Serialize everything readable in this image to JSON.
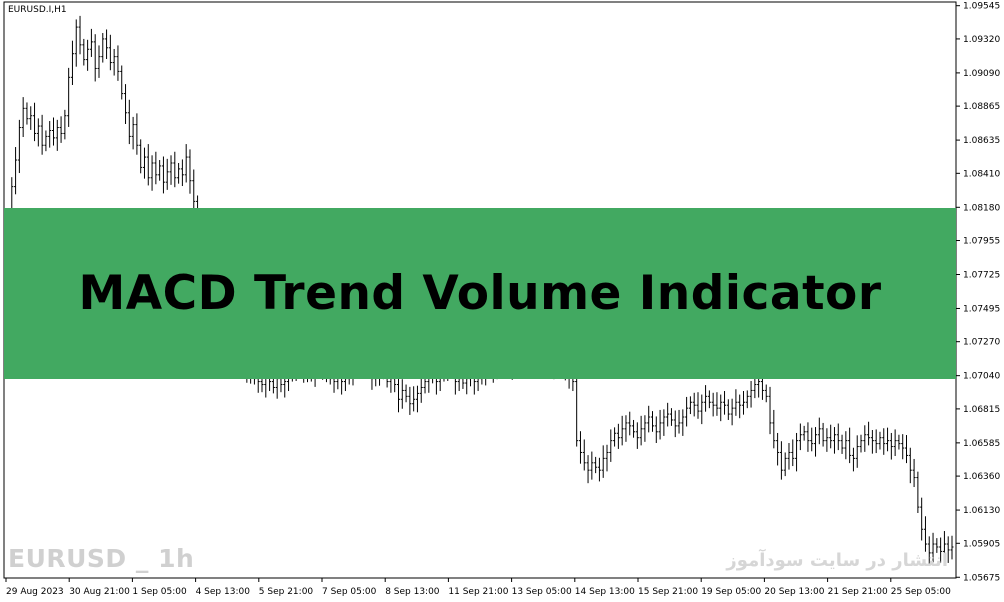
{
  "chart": {
    "symbol_label": "EURUSD.I,H1",
    "banner_title": "MACD Trend Volume Indicator",
    "watermark_left": "EURUSD _ 1h",
    "watermark_right": "انتشار در سایت سودآموز",
    "colors": {
      "banner": "#42a961",
      "candle": "#000000",
      "background": "#ffffff"
    }
  },
  "chart_data": {
    "type": "ohlc",
    "yaxis": {
      "ylim": [
        1.0567,
        1.0957
      ],
      "ticks": [
        "1.09545",
        "1.09320",
        "1.09090",
        "1.08865",
        "1.08635",
        "1.08410",
        "1.08180",
        "1.07955",
        "1.07725",
        "1.07495",
        "1.07270",
        "1.07040",
        "1.06815",
        "1.06585",
        "1.06360",
        "1.06130",
        "1.05905",
        "1.05675"
      ]
    },
    "xaxis": {
      "ticks": [
        "29 Aug 2023",
        "30 Aug 21:00",
        "1 Sep 05:00",
        "4 Sep 13:00",
        "5 Sep 21:00",
        "7 Sep 05:00",
        "8 Sep 13:00",
        "11 Sep 21:00",
        "13 Sep 05:00",
        "14 Sep 13:00",
        "15 Sep 21:00",
        "19 Sep 05:00",
        "20 Sep 13:00",
        "21 Sep 21:00",
        "25 Sep 05:00"
      ]
    },
    "series_close": [
      1.0812,
      1.0832,
      1.085,
      1.0872,
      1.0885,
      1.0878,
      1.088,
      1.0868,
      1.0873,
      1.086,
      1.0866,
      1.087,
      1.0865,
      1.0872,
      1.0868,
      1.088,
      1.0906,
      1.0922,
      1.094,
      1.0928,
      1.0918,
      1.0925,
      1.093,
      1.0912,
      1.092,
      1.0932,
      1.0926,
      1.0916,
      1.092,
      1.091,
      1.0895,
      1.0882,
      1.0866,
      1.0874,
      1.086,
      1.0845,
      1.0852,
      1.0838,
      1.0848,
      1.084,
      1.0846,
      1.0835,
      1.0842,
      1.0848,
      1.0838,
      1.0844,
      1.084,
      1.0852,
      1.0836,
      1.0822,
      1.079,
      1.078,
      1.077,
      1.076,
      1.075,
      1.0745,
      1.074,
      1.0735,
      1.073,
      1.0725,
      1.072,
      1.0715,
      1.0712,
      1.0708,
      1.0705,
      1.0702,
      1.07,
      1.0698,
      1.0704,
      1.07,
      1.0696,
      1.0702,
      1.0698,
      1.07,
      1.0704,
      1.0708,
      1.0712,
      1.0708,
      1.071,
      1.0706,
      1.0704,
      1.0708,
      1.0712,
      1.071,
      1.0706,
      1.0702,
      1.07,
      1.0704,
      1.07,
      1.0702,
      1.0705,
      1.0708,
      1.0712,
      1.0715,
      1.071,
      1.0706,
      1.0702,
      1.0706,
      1.0708,
      1.0712,
      1.07,
      1.0702,
      1.0698,
      1.0688,
      1.0694,
      1.069,
      1.0685,
      1.0688,
      1.0692,
      1.0696,
      1.07,
      1.0704,
      1.0706,
      1.07,
      1.0704,
      1.0708,
      1.0712,
      1.0708,
      1.07,
      1.0702,
      1.0699,
      1.0702,
      1.0705,
      1.07,
      1.0702,
      1.0705,
      1.071,
      1.0714,
      1.0708,
      1.0712,
      1.0716,
      1.0712,
      1.071,
      1.0714,
      1.0718,
      1.0716,
      1.072,
      1.0716,
      1.0712,
      1.0718,
      1.0722,
      1.0726,
      1.0718,
      1.0712,
      1.0708,
      1.0714,
      1.071,
      1.0706,
      1.0704,
      1.07,
      1.066,
      1.0652,
      1.0645,
      1.064,
      1.0645,
      1.0642,
      1.064,
      1.0648,
      1.0652,
      1.066,
      1.0665,
      1.0662,
      1.0668,
      1.0672,
      1.067,
      1.0666,
      1.0662,
      1.0668,
      1.0672,
      1.0676,
      1.067,
      1.0666,
      1.0672,
      1.0676,
      1.0678,
      1.0674,
      1.067,
      1.0672,
      1.0676,
      1.0682,
      1.0686,
      1.0684,
      1.068,
      1.0686,
      1.069,
      1.0686,
      1.0684,
      1.0682,
      1.0686,
      1.0684,
      1.0678,
      1.0682,
      1.0686,
      1.0684,
      1.0686,
      1.069,
      1.0694,
      1.0698,
      1.07,
      1.0694,
      1.069,
      1.0672,
      1.066,
      1.0652,
      1.064,
      1.0648,
      1.0652,
      1.0648,
      1.066,
      1.0664,
      1.0666,
      1.066,
      1.0658,
      1.0664,
      1.0668,
      1.066,
      1.0662,
      1.066,
      1.0664,
      1.066,
      1.0655,
      1.066,
      1.065,
      1.0648,
      1.0656,
      1.066,
      1.0664,
      1.0662,
      1.066,
      1.0658,
      1.0662,
      1.0658,
      1.066,
      1.0656,
      1.066,
      1.0658,
      1.0655,
      1.065,
      1.064,
      1.0635,
      1.0615,
      1.06,
      1.059,
      1.0584,
      1.059,
      1.0588,
      1.0585,
      1.059,
      1.0586,
      1.0588
    ]
  }
}
